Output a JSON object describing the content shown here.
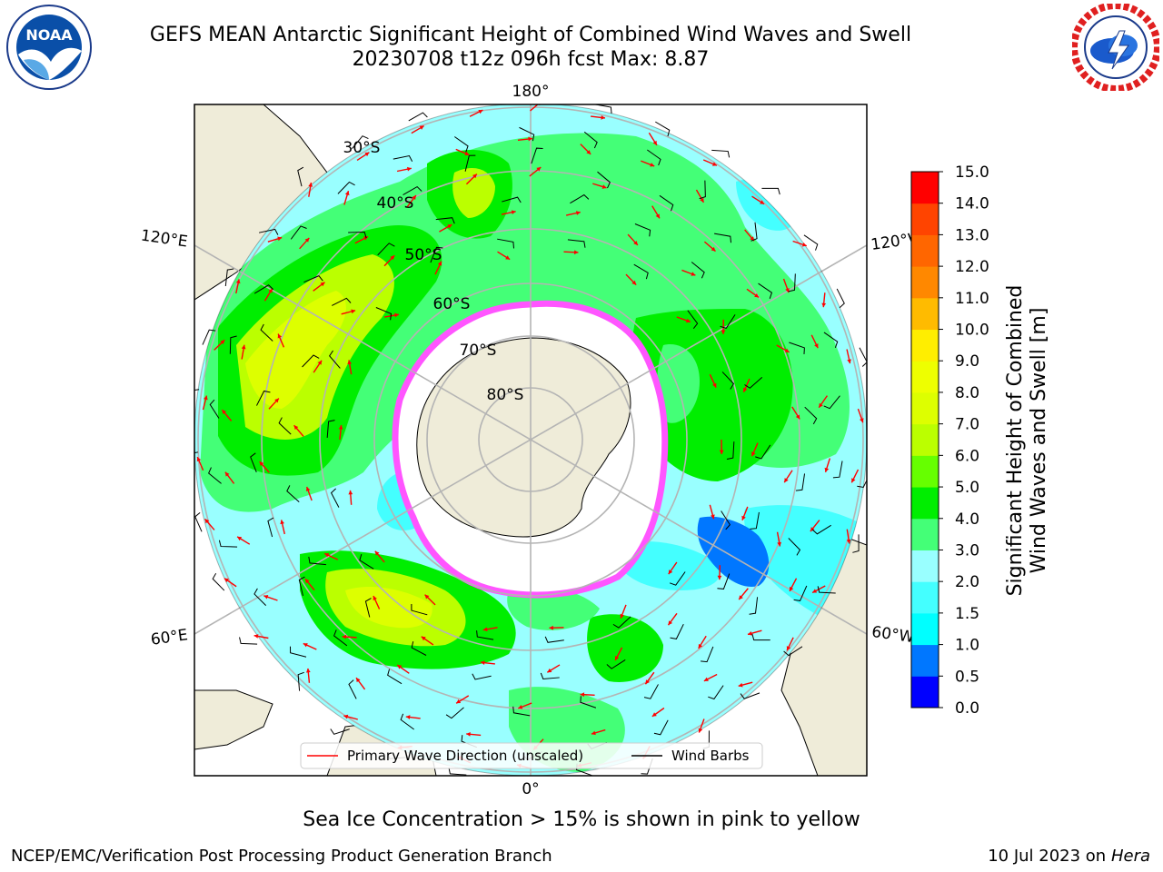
{
  "title": {
    "line1": "GEFS MEAN Antarctic Significant Height of Combined Wind Waves and Swell",
    "line2": "20230708 t12z 096h fcst   Max: 8.87"
  },
  "logos": {
    "noaa": {
      "text": "NOAA",
      "ring_text": "NATIONAL OCEANIC AND ATMOSPHERIC ADMINISTRATION · U.S. DEPARTMENT OF COMMERCE",
      "icon": "noaa-seagull-logo"
    },
    "nws": {
      "ring_text": "NATIONAL WEATHER SERVICE",
      "icon": "nws-cloud-lightning-logo"
    }
  },
  "map": {
    "projection": "south-polar-stereographic",
    "longitude_labels": {
      "top": "180°",
      "bottom": "0°",
      "upper_left": "120°E",
      "upper_right": "120°W",
      "lower_left": "60°E",
      "lower_right": "60°W"
    },
    "latitude_labels": [
      "30°S",
      "40°S",
      "50°S",
      "60°S",
      "70°S",
      "80°S"
    ],
    "legend": {
      "primary_wave": "Primary Wave Direction (unscaled)",
      "wind_barbs": "Wind Barbs",
      "primary_wave_color": "#ff0000",
      "wind_barbs_color": "#000000"
    },
    "colors": {
      "land": "#efecd9",
      "ice": "#ffffff",
      "ice_edge": "#ff55ff",
      "grid": "#b4b4b4"
    }
  },
  "colorbar": {
    "label_line1": "Significant Height of Combined",
    "label_line2": "Wind Waves and Swell [m]",
    "ticks": [
      "0.0",
      "0.5",
      "1.0",
      "1.5",
      "2.0",
      "3.0",
      "4.0",
      "5.0",
      "6.0",
      "7.0",
      "8.0",
      "9.0",
      "10.0",
      "11.0",
      "12.0",
      "13.0",
      "14.0",
      "15.0"
    ],
    "colors": [
      "#0000ff",
      "#0077ff",
      "#00ffff",
      "#44ffff",
      "#99ffff",
      "#44ff77",
      "#00ee00",
      "#66ff00",
      "#bbff00",
      "#ddff00",
      "#eeff00",
      "#ffee00",
      "#ffbb00",
      "#ff8800",
      "#ff6600",
      "#ff4400",
      "#ff0000"
    ]
  },
  "footer": {
    "caption": "Sea Ice Concentration > 15% is shown in pink to yellow",
    "left": "NCEP/EMC/Verification Post Processing Product Generation Branch",
    "right_date": "10 Jul 2023 on ",
    "right_machine": "Hera"
  }
}
